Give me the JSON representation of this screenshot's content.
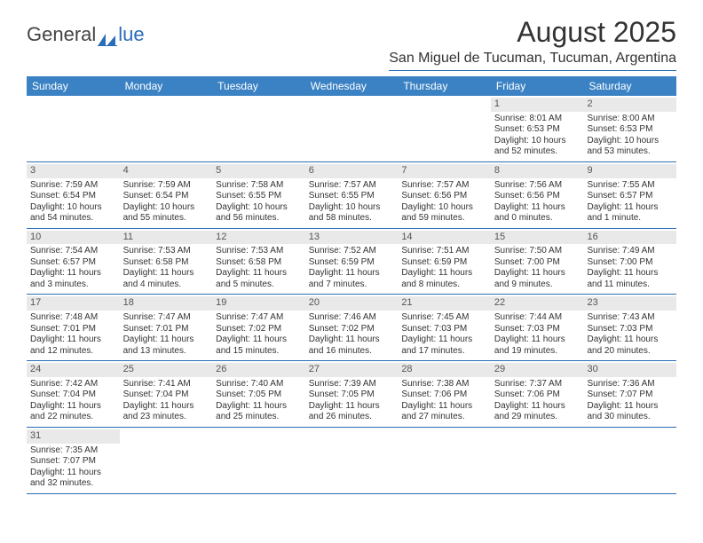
{
  "brand": {
    "part1": "General",
    "part2": "lue"
  },
  "header": {
    "title": "August 2025",
    "location": "San Miguel de Tucuman, Tucuman, Argentina"
  },
  "colors": {
    "header_bar": "#3b82c4",
    "week_divider": "#2a6db8",
    "daynum_bg": "#e9e9e9"
  },
  "weekdays": [
    "Sunday",
    "Monday",
    "Tuesday",
    "Wednesday",
    "Thursday",
    "Friday",
    "Saturday"
  ],
  "weeks": [
    [
      null,
      null,
      null,
      null,
      null,
      {
        "n": "1",
        "sr": "Sunrise: 8:01 AM",
        "ss": "Sunset: 6:53 PM",
        "d1": "Daylight: 10 hours",
        "d2": "and 52 minutes."
      },
      {
        "n": "2",
        "sr": "Sunrise: 8:00 AM",
        "ss": "Sunset: 6:53 PM",
        "d1": "Daylight: 10 hours",
        "d2": "and 53 minutes."
      }
    ],
    [
      {
        "n": "3",
        "sr": "Sunrise: 7:59 AM",
        "ss": "Sunset: 6:54 PM",
        "d1": "Daylight: 10 hours",
        "d2": "and 54 minutes."
      },
      {
        "n": "4",
        "sr": "Sunrise: 7:59 AM",
        "ss": "Sunset: 6:54 PM",
        "d1": "Daylight: 10 hours",
        "d2": "and 55 minutes."
      },
      {
        "n": "5",
        "sr": "Sunrise: 7:58 AM",
        "ss": "Sunset: 6:55 PM",
        "d1": "Daylight: 10 hours",
        "d2": "and 56 minutes."
      },
      {
        "n": "6",
        "sr": "Sunrise: 7:57 AM",
        "ss": "Sunset: 6:55 PM",
        "d1": "Daylight: 10 hours",
        "d2": "and 58 minutes."
      },
      {
        "n": "7",
        "sr": "Sunrise: 7:57 AM",
        "ss": "Sunset: 6:56 PM",
        "d1": "Daylight: 10 hours",
        "d2": "and 59 minutes."
      },
      {
        "n": "8",
        "sr": "Sunrise: 7:56 AM",
        "ss": "Sunset: 6:56 PM",
        "d1": "Daylight: 11 hours",
        "d2": "and 0 minutes."
      },
      {
        "n": "9",
        "sr": "Sunrise: 7:55 AM",
        "ss": "Sunset: 6:57 PM",
        "d1": "Daylight: 11 hours",
        "d2": "and 1 minute."
      }
    ],
    [
      {
        "n": "10",
        "sr": "Sunrise: 7:54 AM",
        "ss": "Sunset: 6:57 PM",
        "d1": "Daylight: 11 hours",
        "d2": "and 3 minutes."
      },
      {
        "n": "11",
        "sr": "Sunrise: 7:53 AM",
        "ss": "Sunset: 6:58 PM",
        "d1": "Daylight: 11 hours",
        "d2": "and 4 minutes."
      },
      {
        "n": "12",
        "sr": "Sunrise: 7:53 AM",
        "ss": "Sunset: 6:58 PM",
        "d1": "Daylight: 11 hours",
        "d2": "and 5 minutes."
      },
      {
        "n": "13",
        "sr": "Sunrise: 7:52 AM",
        "ss": "Sunset: 6:59 PM",
        "d1": "Daylight: 11 hours",
        "d2": "and 7 minutes."
      },
      {
        "n": "14",
        "sr": "Sunrise: 7:51 AM",
        "ss": "Sunset: 6:59 PM",
        "d1": "Daylight: 11 hours",
        "d2": "and 8 minutes."
      },
      {
        "n": "15",
        "sr": "Sunrise: 7:50 AM",
        "ss": "Sunset: 7:00 PM",
        "d1": "Daylight: 11 hours",
        "d2": "and 9 minutes."
      },
      {
        "n": "16",
        "sr": "Sunrise: 7:49 AM",
        "ss": "Sunset: 7:00 PM",
        "d1": "Daylight: 11 hours",
        "d2": "and 11 minutes."
      }
    ],
    [
      {
        "n": "17",
        "sr": "Sunrise: 7:48 AM",
        "ss": "Sunset: 7:01 PM",
        "d1": "Daylight: 11 hours",
        "d2": "and 12 minutes."
      },
      {
        "n": "18",
        "sr": "Sunrise: 7:47 AM",
        "ss": "Sunset: 7:01 PM",
        "d1": "Daylight: 11 hours",
        "d2": "and 13 minutes."
      },
      {
        "n": "19",
        "sr": "Sunrise: 7:47 AM",
        "ss": "Sunset: 7:02 PM",
        "d1": "Daylight: 11 hours",
        "d2": "and 15 minutes."
      },
      {
        "n": "20",
        "sr": "Sunrise: 7:46 AM",
        "ss": "Sunset: 7:02 PM",
        "d1": "Daylight: 11 hours",
        "d2": "and 16 minutes."
      },
      {
        "n": "21",
        "sr": "Sunrise: 7:45 AM",
        "ss": "Sunset: 7:03 PM",
        "d1": "Daylight: 11 hours",
        "d2": "and 17 minutes."
      },
      {
        "n": "22",
        "sr": "Sunrise: 7:44 AM",
        "ss": "Sunset: 7:03 PM",
        "d1": "Daylight: 11 hours",
        "d2": "and 19 minutes."
      },
      {
        "n": "23",
        "sr": "Sunrise: 7:43 AM",
        "ss": "Sunset: 7:03 PM",
        "d1": "Daylight: 11 hours",
        "d2": "and 20 minutes."
      }
    ],
    [
      {
        "n": "24",
        "sr": "Sunrise: 7:42 AM",
        "ss": "Sunset: 7:04 PM",
        "d1": "Daylight: 11 hours",
        "d2": "and 22 minutes."
      },
      {
        "n": "25",
        "sr": "Sunrise: 7:41 AM",
        "ss": "Sunset: 7:04 PM",
        "d1": "Daylight: 11 hours",
        "d2": "and 23 minutes."
      },
      {
        "n": "26",
        "sr": "Sunrise: 7:40 AM",
        "ss": "Sunset: 7:05 PM",
        "d1": "Daylight: 11 hours",
        "d2": "and 25 minutes."
      },
      {
        "n": "27",
        "sr": "Sunrise: 7:39 AM",
        "ss": "Sunset: 7:05 PM",
        "d1": "Daylight: 11 hours",
        "d2": "and 26 minutes."
      },
      {
        "n": "28",
        "sr": "Sunrise: 7:38 AM",
        "ss": "Sunset: 7:06 PM",
        "d1": "Daylight: 11 hours",
        "d2": "and 27 minutes."
      },
      {
        "n": "29",
        "sr": "Sunrise: 7:37 AM",
        "ss": "Sunset: 7:06 PM",
        "d1": "Daylight: 11 hours",
        "d2": "and 29 minutes."
      },
      {
        "n": "30",
        "sr": "Sunrise: 7:36 AM",
        "ss": "Sunset: 7:07 PM",
        "d1": "Daylight: 11 hours",
        "d2": "and 30 minutes."
      }
    ],
    [
      {
        "n": "31",
        "sr": "Sunrise: 7:35 AM",
        "ss": "Sunset: 7:07 PM",
        "d1": "Daylight: 11 hours",
        "d2": "and 32 minutes."
      },
      null,
      null,
      null,
      null,
      null,
      null
    ]
  ]
}
